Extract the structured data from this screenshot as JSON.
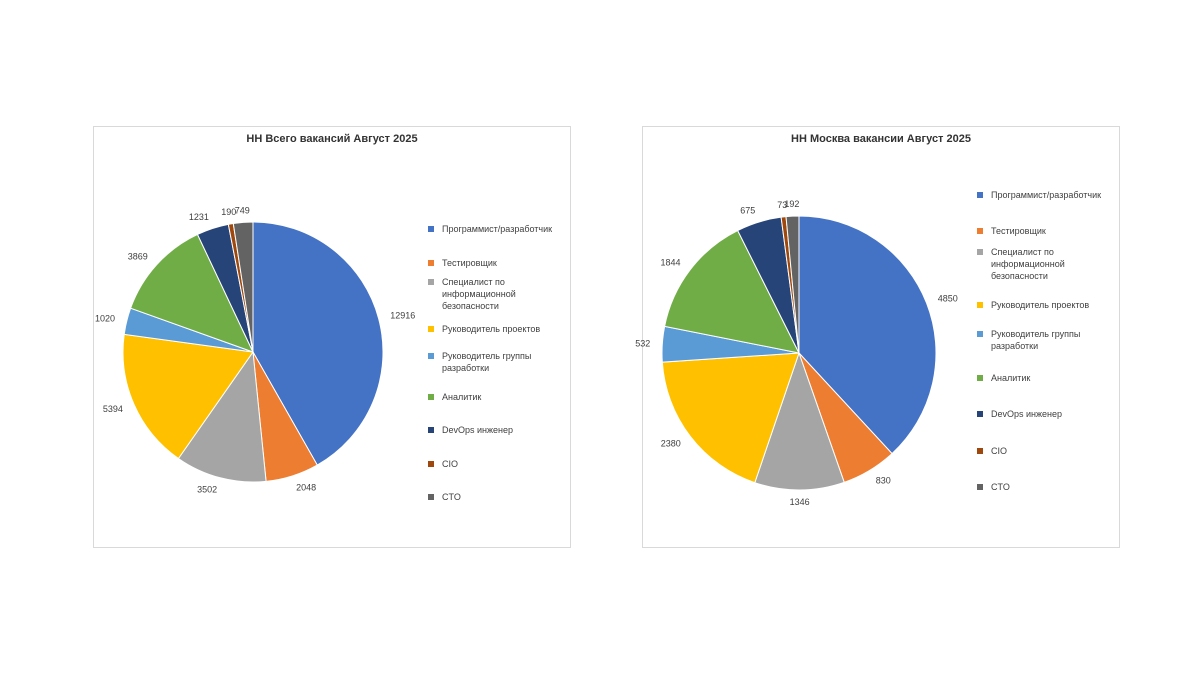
{
  "legend_labels": [
    "Программист/разработчик",
    "Тестировщик",
    "Специалист по информационной безопасности",
    "Руководитель проектов",
    "Руководитель группы разработки",
    "Аналитик",
    "DevOps инженер",
    "CIO",
    "CTO"
  ],
  "colors": [
    "#4472c4",
    "#ed7d31",
    "#a5a5a5",
    "#ffc000",
    "#5b9bd5",
    "#70ad47",
    "#264478",
    "#9e480e",
    "#636363"
  ],
  "chart_data": [
    {
      "type": "pie",
      "title": "HH Всего вакансий Август 2025",
      "categories": [
        "Программист/разработчик",
        "Тестировщик",
        "Специалист по информационной безопасности",
        "Руководитель проектов",
        "Руководитель группы разработки",
        "Аналитик",
        "DevOps инженер",
        "CIO",
        "CTO"
      ],
      "values": [
        12916,
        2048,
        3502,
        5394,
        1020,
        3869,
        1231,
        190,
        749
      ],
      "data_labels": [
        "12916",
        "2048",
        "3502",
        "5394",
        "1020",
        "3869",
        "1231",
        "190",
        "749"
      ],
      "legend": "right"
    },
    {
      "type": "pie",
      "title": "HH Москва вакансии Август 2025",
      "categories": [
        "Программист/разработчик",
        "Тестировщик",
        "Специалист по информационной безопасности",
        "Руководитель проектов",
        "Руководитель группы разработки",
        "Аналитик",
        "DevOps инженер",
        "CIO",
        "CTO"
      ],
      "values": [
        4850,
        830,
        1346,
        2380,
        532,
        1844,
        675,
        73,
        192
      ],
      "data_labels": [
        "4850",
        "830",
        "1346",
        "2380",
        "532",
        "1844",
        "675",
        "73",
        "192"
      ],
      "legend": "right"
    }
  ]
}
